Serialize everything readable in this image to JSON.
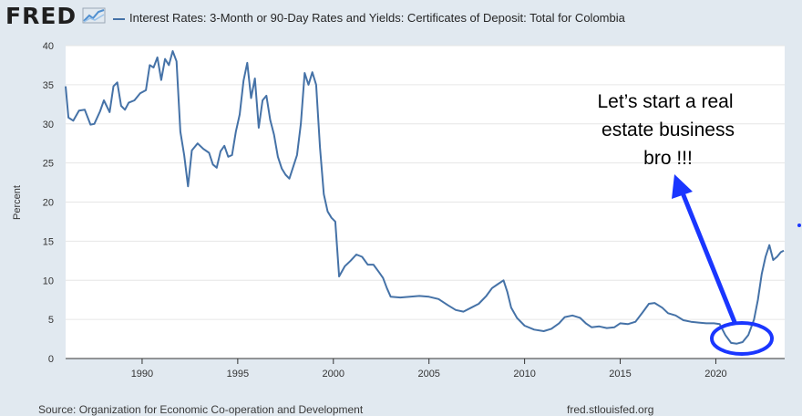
{
  "header": {
    "logo_text": "FRED",
    "logo_icon": "chart-line-icon",
    "series_title": "Interest Rates: 3-Month or 90-Day Rates and Yields: Certificates of Deposit: Total for Colombia"
  },
  "footer": {
    "source": "Source: Organization for Economic Co-operation and Development",
    "site": "fred.stlouisfed.org"
  },
  "colors": {
    "line": "#4572a7",
    "annotation": "#1a36ff",
    "plot_bg": "#ffffff",
    "page_bg": "#e1e9f0"
  },
  "chart_data": {
    "type": "line",
    "title": "Interest Rates: 3-Month or 90-Day Rates and Yields: Certificates of Deposit: Total for Colombia",
    "xlabel": "",
    "ylabel": "Percent",
    "xlim": [
      1986,
      2023.6
    ],
    "ylim": [
      0,
      40
    ],
    "x_ticks": [
      1990,
      1995,
      2000,
      2005,
      2010,
      2015,
      2020
    ],
    "y_ticks": [
      0,
      5,
      10,
      15,
      20,
      25,
      30,
      35,
      40
    ],
    "grid": true,
    "series": [
      {
        "name": "Certificates of Deposit: Total for Colombia",
        "x": [
          1986.0,
          1986.15,
          1986.4,
          1986.7,
          1987.0,
          1987.3,
          1987.5,
          1987.8,
          1988.0,
          1988.3,
          1988.5,
          1988.7,
          1988.9,
          1989.1,
          1989.3,
          1989.6,
          1989.9,
          1990.2,
          1990.4,
          1990.6,
          1990.8,
          1991.0,
          1991.2,
          1991.4,
          1991.6,
          1991.8,
          1992.0,
          1992.2,
          1992.4,
          1992.6,
          1992.9,
          1993.2,
          1993.5,
          1993.7,
          1993.9,
          1994.1,
          1994.3,
          1994.5,
          1994.7,
          1994.9,
          1995.1,
          1995.3,
          1995.5,
          1995.7,
          1995.9,
          1996.1,
          1996.3,
          1996.5,
          1996.7,
          1996.9,
          1997.1,
          1997.3,
          1997.5,
          1997.7,
          1997.9,
          1998.1,
          1998.3,
          1998.5,
          1998.7,
          1998.9,
          1999.1,
          1999.3,
          1999.5,
          1999.7,
          1999.9,
          2000.1,
          2000.3,
          2000.6,
          2000.9,
          2001.2,
          2001.5,
          2001.8,
          2002.1,
          2002.4,
          2002.6,
          2002.8,
          2003.0,
          2003.5,
          2004.0,
          2004.5,
          2005.0,
          2005.5,
          2006.0,
          2006.4,
          2006.8,
          2007.2,
          2007.6,
          2008.0,
          2008.3,
          2008.6,
          2008.9,
          2009.1,
          2009.3,
          2009.6,
          2010.0,
          2010.5,
          2011.0,
          2011.4,
          2011.8,
          2012.1,
          2012.5,
          2012.9,
          2013.2,
          2013.5,
          2013.9,
          2014.3,
          2014.7,
          2015.0,
          2015.4,
          2015.8,
          2016.2,
          2016.5,
          2016.8,
          2017.2,
          2017.5,
          2017.9,
          2018.3,
          2018.7,
          2019.1,
          2019.5,
          2019.9,
          2020.2,
          2020.5,
          2020.8,
          2021.1,
          2021.4,
          2021.7,
          2022.0,
          2022.2,
          2022.4,
          2022.6,
          2022.8,
          2023.0,
          2023.2,
          2023.4,
          2023.55
        ],
        "values": [
          34.8,
          30.8,
          30.4,
          31.7,
          31.8,
          29.9,
          30.0,
          31.6,
          33.0,
          31.5,
          34.8,
          35.3,
          32.3,
          31.8,
          32.7,
          33.0,
          33.9,
          34.3,
          37.5,
          37.2,
          38.5,
          35.6,
          38.3,
          37.5,
          39.3,
          38.0,
          29.0,
          26.0,
          22.0,
          26.6,
          27.5,
          26.8,
          26.3,
          24.8,
          24.4,
          26.5,
          27.2,
          25.8,
          26.0,
          29.0,
          31.2,
          35.5,
          37.8,
          33.3,
          35.8,
          29.5,
          33.0,
          33.6,
          30.5,
          28.6,
          25.8,
          24.3,
          23.5,
          23.0,
          24.5,
          26.0,
          30.0,
          36.5,
          35.0,
          36.6,
          35.0,
          27.0,
          21.0,
          18.8,
          18.0,
          17.5,
          10.5,
          11.8,
          12.5,
          13.3,
          13.0,
          12.0,
          12.0,
          11.0,
          10.3,
          9.0,
          7.9,
          7.8,
          7.9,
          8.0,
          7.9,
          7.6,
          6.8,
          6.2,
          6.0,
          6.5,
          7.0,
          8.0,
          9.0,
          9.5,
          10.0,
          8.5,
          6.5,
          5.2,
          4.2,
          3.7,
          3.5,
          3.8,
          4.5,
          5.3,
          5.5,
          5.2,
          4.5,
          4.0,
          4.1,
          3.9,
          4.0,
          4.5,
          4.4,
          4.7,
          6.0,
          7.0,
          7.1,
          6.5,
          5.8,
          5.5,
          4.9,
          4.7,
          4.6,
          4.5,
          4.5,
          4.4,
          3.0,
          2.0,
          1.9,
          2.1,
          3.0,
          5.0,
          7.5,
          10.8,
          13.0,
          14.5,
          12.6,
          13.0,
          13.6,
          13.8
        ]
      }
    ],
    "annotation": {
      "lines": [
        "Let’s start a real",
        "estate business",
        "bro !!!"
      ]
    }
  }
}
